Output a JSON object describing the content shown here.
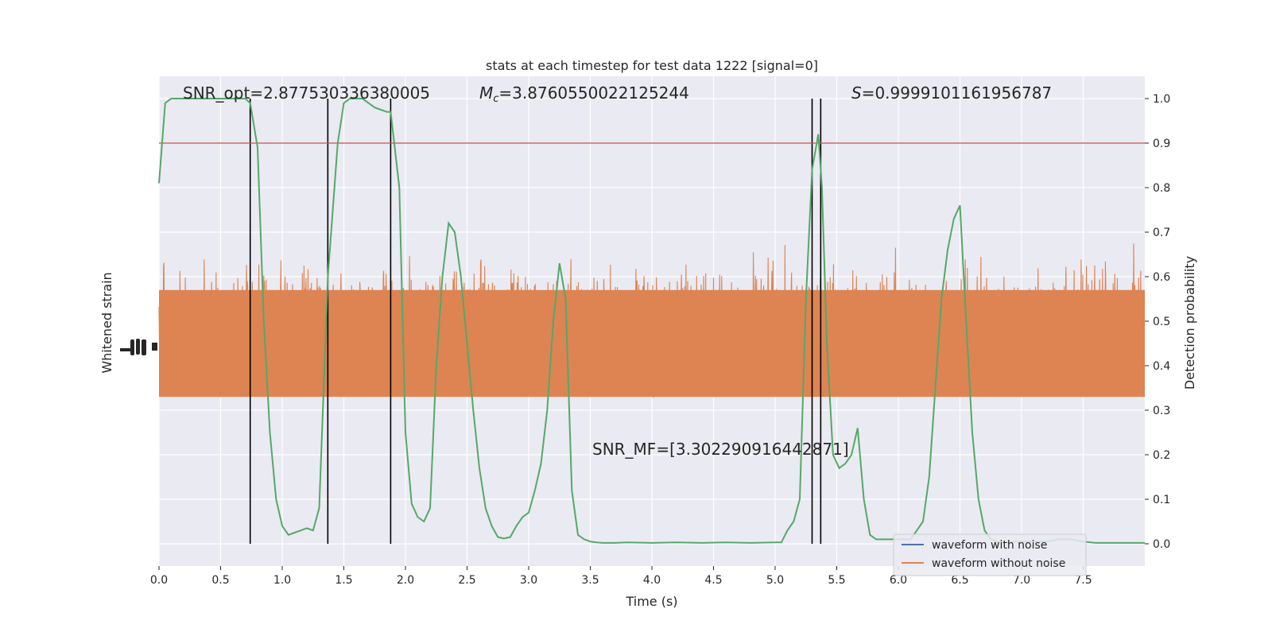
{
  "chart_data": {
    "type": "line",
    "title": "stats at each timestep for test data 1222 [signal=0]",
    "xlabel": "Time (s)",
    "ylabel_left": "Whitened strain",
    "ylabel_right": "Detection probability",
    "xlim": [
      0,
      8.0
    ],
    "ylim_right": [
      -0.05,
      1.05
    ],
    "x_ticks": [
      0.0,
      0.5,
      1.0,
      1.5,
      2.0,
      2.5,
      3.0,
      3.5,
      4.0,
      4.5,
      5.0,
      5.5,
      6.0,
      6.5,
      7.0,
      7.5
    ],
    "x_tick_labels": [
      "0.0",
      "0.5",
      "1.0",
      "1.5",
      "2.0",
      "2.5",
      "3.0",
      "3.5",
      "4.0",
      "4.5",
      "5.0",
      "5.5",
      "6.0",
      "6.5",
      "7.0",
      "7.5"
    ],
    "y_right_ticks": [
      0.0,
      0.1,
      0.2,
      0.3,
      0.4,
      0.5,
      0.6,
      0.7,
      0.8,
      0.9,
      1.0
    ],
    "y_right_tick_labels": [
      "0.0",
      "0.1",
      "0.2",
      "0.3",
      "0.4",
      "0.5",
      "0.6",
      "0.7",
      "0.8",
      "0.9",
      "1.0"
    ],
    "grid": true,
    "threshold": 0.9,
    "vertical_lines_x": [
      0.74,
      1.37,
      1.88,
      5.3,
      5.37
    ],
    "annotations": {
      "snr_opt": "SNR_opt=2.877530336380005",
      "mc_symbol": "M",
      "mc_sub": "c",
      "mc_value": "=3.8760550022125244",
      "s_symbol": "S",
      "s_value": "=0.9999101161956787",
      "snr_mf": "SNR_MF=[3.302290916442871]"
    },
    "legend": {
      "position": "lower-right",
      "entries": [
        "waveform with noise",
        "waveform without noise"
      ]
    },
    "series": [
      {
        "name": "waveform without noise",
        "noise_band": {
          "typical_low": 0.3,
          "typical_high": 0.7,
          "spike_min": 0.01,
          "spike_max": 1.0
        },
        "color": "#dd8452"
      },
      {
        "name": "waveform with noise",
        "color": "#4c72b0"
      },
      {
        "name": "detection probability",
        "color": "#55a868",
        "x": [
          0.0,
          0.05,
          0.1,
          0.2,
          0.3,
          0.4,
          0.5,
          0.6,
          0.7,
          0.74,
          0.8,
          0.85,
          0.9,
          0.95,
          1.0,
          1.05,
          1.1,
          1.15,
          1.2,
          1.25,
          1.3,
          1.37,
          1.45,
          1.5,
          1.55,
          1.6,
          1.65,
          1.7,
          1.75,
          1.8,
          1.85,
          1.88,
          1.95,
          2.0,
          2.05,
          2.1,
          2.15,
          2.2,
          2.25,
          2.3,
          2.35,
          2.4,
          2.45,
          2.5,
          2.55,
          2.6,
          2.65,
          2.7,
          2.75,
          2.8,
          2.85,
          2.9,
          2.95,
          3.0,
          3.05,
          3.1,
          3.15,
          3.2,
          3.25,
          3.3,
          3.35,
          3.4,
          3.45,
          3.5,
          3.55,
          3.6,
          3.7,
          3.8,
          4.0,
          4.2,
          4.4,
          4.6,
          4.8,
          5.0,
          5.05,
          5.1,
          5.15,
          5.2,
          5.25,
          5.3,
          5.35,
          5.38,
          5.42,
          5.47,
          5.52,
          5.57,
          5.62,
          5.67,
          5.72,
          5.77,
          5.82,
          5.9,
          6.0,
          6.1,
          6.2,
          6.25,
          6.3,
          6.35,
          6.4,
          6.45,
          6.5,
          6.55,
          6.6,
          6.65,
          6.7,
          6.75,
          6.8,
          6.85,
          6.9,
          6.95,
          7.0,
          7.1,
          7.2,
          7.3,
          7.4,
          7.5,
          7.6,
          7.7,
          7.8,
          7.9,
          8.0
        ],
        "y": [
          0.81,
          0.99,
          1.0,
          1.0,
          1.0,
          1.0,
          1.0,
          1.0,
          1.0,
          0.99,
          0.89,
          0.5,
          0.25,
          0.1,
          0.04,
          0.02,
          0.025,
          0.03,
          0.035,
          0.03,
          0.08,
          0.6,
          0.9,
          0.99,
          1.0,
          1.0,
          1.0,
          0.99,
          0.98,
          0.975,
          0.97,
          0.97,
          0.8,
          0.25,
          0.09,
          0.06,
          0.05,
          0.08,
          0.4,
          0.6,
          0.72,
          0.7,
          0.6,
          0.45,
          0.3,
          0.17,
          0.08,
          0.04,
          0.015,
          0.012,
          0.015,
          0.04,
          0.06,
          0.07,
          0.12,
          0.18,
          0.3,
          0.5,
          0.63,
          0.55,
          0.12,
          0.02,
          0.01,
          0.005,
          0.003,
          0.002,
          0.002,
          0.003,
          0.002,
          0.003,
          0.002,
          0.003,
          0.002,
          0.003,
          0.003,
          0.03,
          0.05,
          0.1,
          0.55,
          0.84,
          0.92,
          0.8,
          0.45,
          0.2,
          0.17,
          0.18,
          0.2,
          0.26,
          0.1,
          0.02,
          0.01,
          0.01,
          0.01,
          0.01,
          0.05,
          0.15,
          0.35,
          0.55,
          0.66,
          0.73,
          0.76,
          0.5,
          0.25,
          0.1,
          0.03,
          0.01,
          0.005,
          0.003,
          0.003,
          0.005,
          0.005,
          0.005,
          0.005,
          0.01,
          0.01,
          0.005,
          0.002,
          0.002,
          0.002,
          0.002,
          0.002
        ]
      }
    ]
  }
}
